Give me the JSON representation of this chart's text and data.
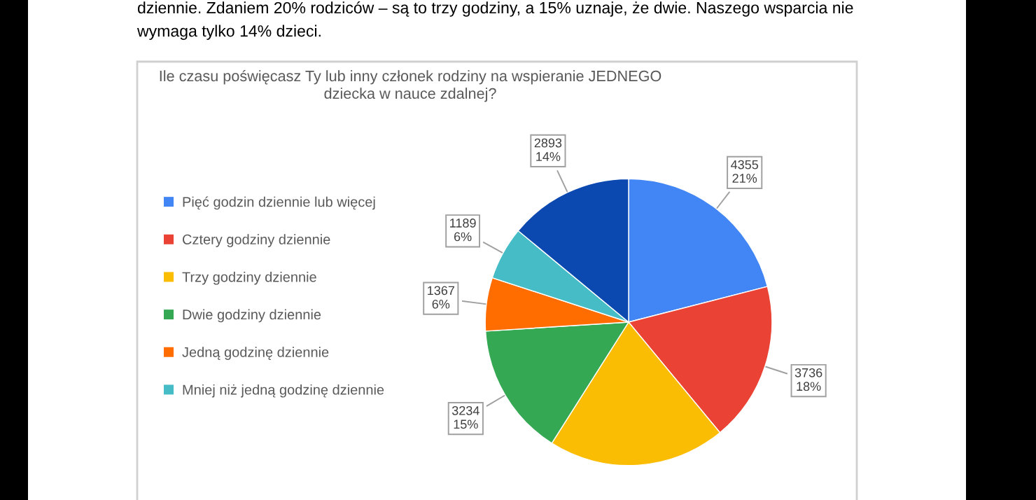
{
  "chart_data": {
    "type": "pie",
    "title": "Ile czasu poświęcasz Ty lub inny członek rodziny na wspieranie JEDNEGO\ndziecka w nauce zdalnej?",
    "annotations": [
      "dziennie. Zdaniem 20% rodziców – są to trzy godziny, a 15% uznaje, że dwie. Naszego wsparcia nie\nwymaga tylko 14% dzieci."
    ],
    "categories": [
      "Pięć godzin dziennie lub więcej",
      "Cztery godziny dziennie",
      "Trzy godziny dziennie",
      "Dwie godziny dziennie",
      "Jedną godzinę dziennie",
      "Mniej niż jedną godzinę dziennie",
      null
    ],
    "values": [
      21,
      18,
      20,
      15,
      6,
      6,
      14
    ],
    "value_labels": [
      "4355\n21%",
      "3736\n18%",
      null,
      "3234\n15%",
      "1367\n6%",
      "1189\n6%",
      "2893\n14%"
    ],
    "colors": [
      "#4285f4",
      "#ea4335",
      "#fbbc04",
      "#34a853",
      "#ff6d01",
      "#46bdc6",
      "#0b49b0"
    ],
    "legend": "left"
  }
}
